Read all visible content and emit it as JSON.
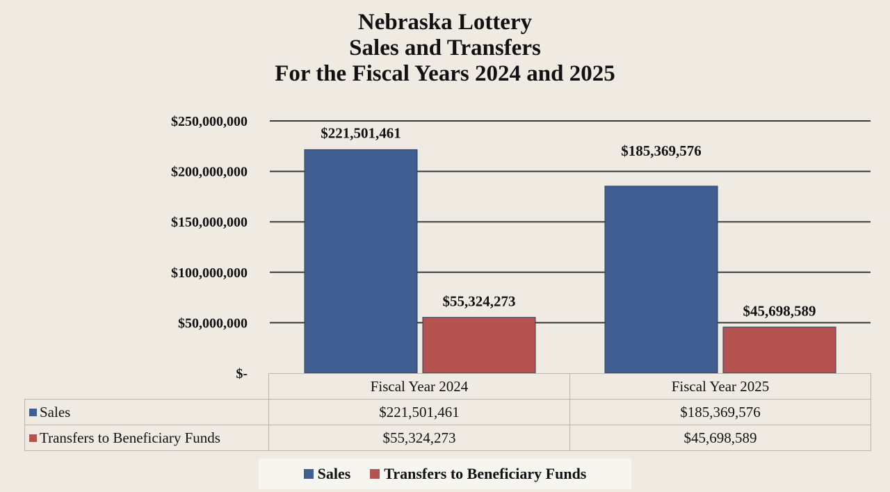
{
  "chart_data": {
    "type": "bar",
    "title_lines": [
      "Nebraska Lottery",
      "Sales and Transfers",
      "For the Fiscal Years 2024 and 2025"
    ],
    "categories": [
      "Fiscal Year 2024",
      "Fiscal Year 2025"
    ],
    "series": [
      {
        "name": "Sales",
        "color": "#3f5d90",
        "values": [
          221501461,
          185369576
        ],
        "labels": [
          "$221,501,461",
          "$185,369,576"
        ]
      },
      {
        "name": "Transfers to Beneficiary Funds",
        "color": "#b55350",
        "values": [
          55324273,
          45698589
        ],
        "labels": [
          "$55,324,273",
          "$45,698,589"
        ]
      }
    ],
    "ylim": [
      0,
      250000000
    ],
    "yticks": [
      0,
      50000000,
      100000000,
      150000000,
      200000000,
      250000000
    ],
    "ytick_labels": [
      "$-",
      "$50,000,000",
      "$100,000,000",
      "$150,000,000",
      "$200,000,000",
      "$250,000,000"
    ],
    "grid": true,
    "legend_position": "bottom",
    "data_table": true
  },
  "table_rows": [
    {
      "label": "Sales",
      "values": [
        "$221,501,461",
        "$185,369,576"
      ],
      "color": "#3f5d90"
    },
    {
      "label": "Transfers to Beneficiary Funds",
      "values": [
        "$55,324,273",
        "$45,698,589"
      ],
      "color": "#b55350"
    }
  ],
  "legend": [
    {
      "label": "Sales",
      "color": "#3f5d90"
    },
    {
      "label": "Transfers to Beneficiary Funds",
      "color": "#b55350"
    }
  ]
}
